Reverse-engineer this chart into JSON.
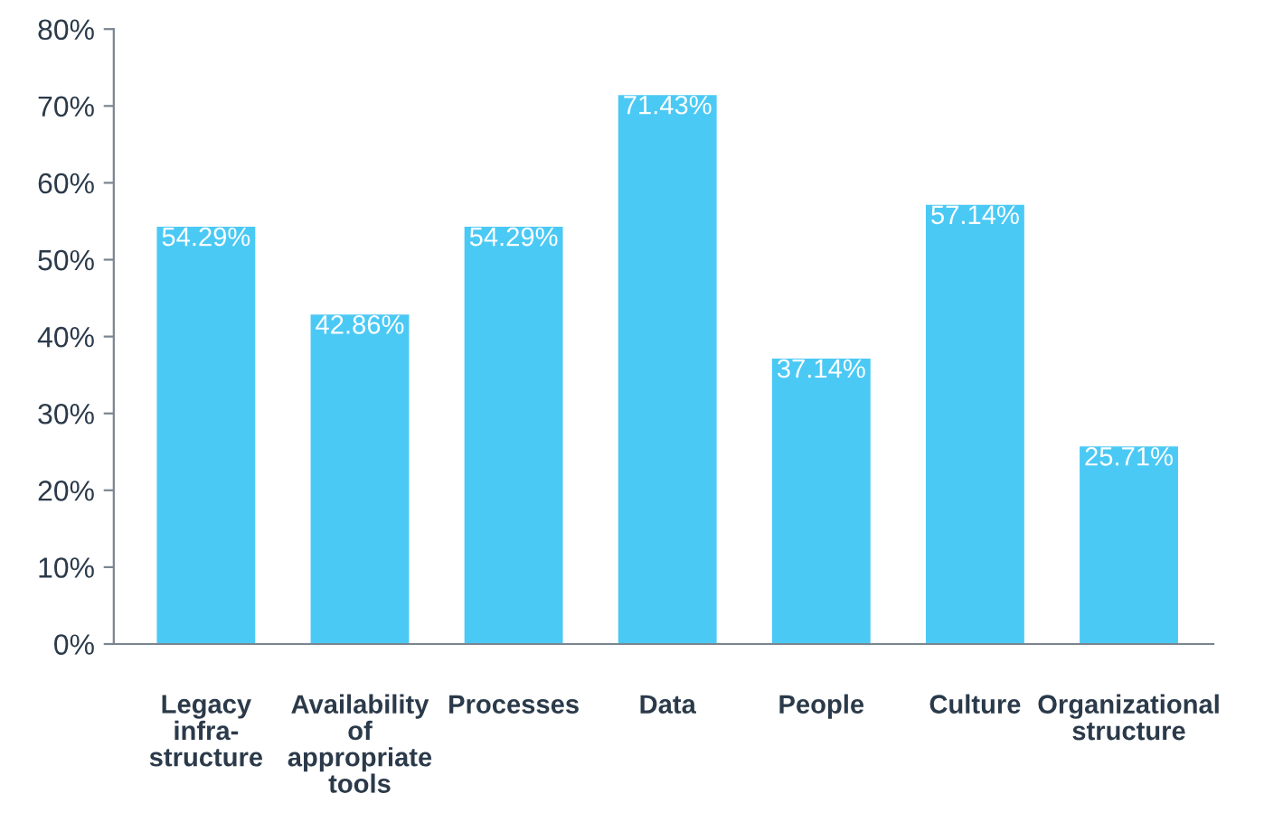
{
  "chart_data": {
    "type": "bar",
    "categories": [
      "Legacy\ninfra-\nstructure",
      "Availability\nof\nappropriate\ntools",
      "Processes",
      "Data",
      "People",
      "Culture",
      "Organizational\nstructure"
    ],
    "values": [
      54.29,
      42.86,
      54.29,
      71.43,
      37.14,
      57.14,
      25.71
    ],
    "value_labels": [
      "54.29%",
      "42.86%",
      "54.29%",
      "71.43%",
      "37.14%",
      "57.14%",
      "25.71%"
    ],
    "color": "#4bc9f5",
    "ylim": [
      0,
      80
    ],
    "yticks": [
      {
        "value": 0,
        "label": "0%"
      },
      {
        "value": 10,
        "label": "10%"
      },
      {
        "value": 20,
        "label": "20%"
      },
      {
        "value": 30,
        "label": "30%"
      },
      {
        "value": 40,
        "label": "40%"
      },
      {
        "value": 50,
        "label": "50%"
      },
      {
        "value": 60,
        "label": "60%"
      },
      {
        "value": 70,
        "label": "70%"
      },
      {
        "value": 80,
        "label": "80%"
      }
    ],
    "grid": false,
    "legend": false
  }
}
